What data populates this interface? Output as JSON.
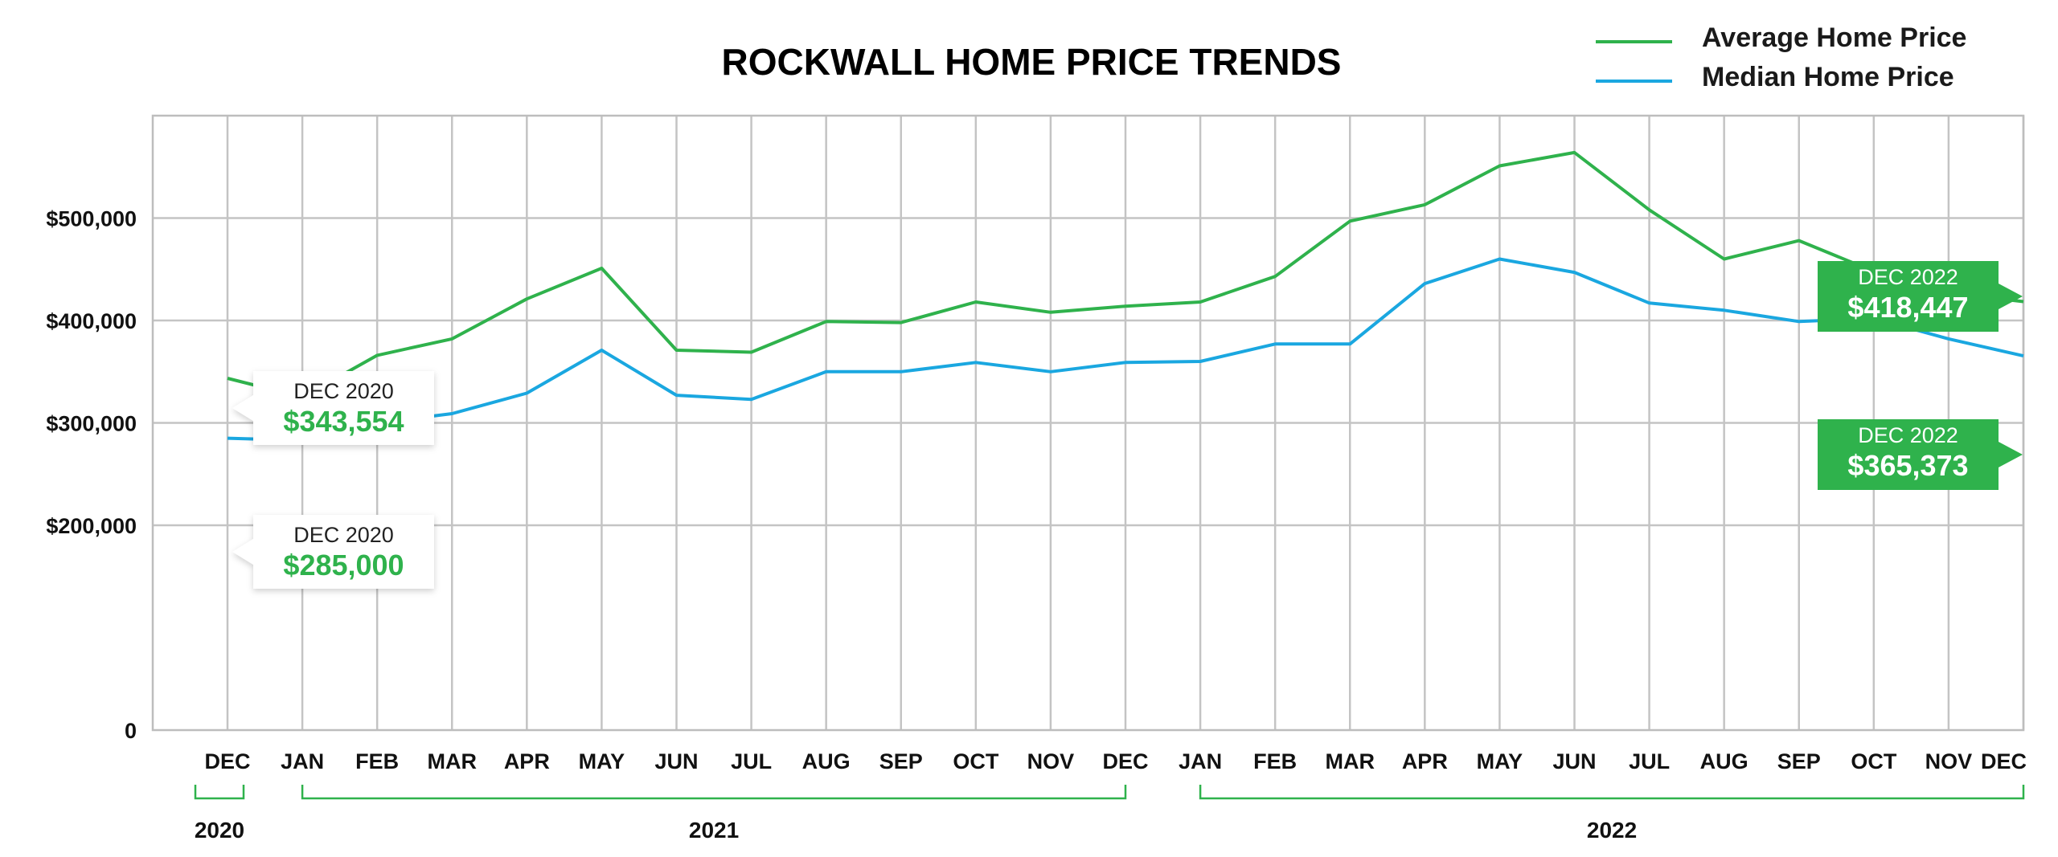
{
  "chart_data": {
    "type": "line",
    "title": "ROCKWALL HOME PRICE TRENDS",
    "xlabel": "",
    "ylabel": "",
    "ylim": [
      0,
      600000
    ],
    "y_ticks": [
      0,
      200000,
      300000,
      400000,
      500000
    ],
    "y_tick_labels": [
      "0",
      "$200,000",
      "$300,000",
      "$400,000",
      "$500,000"
    ],
    "grid": true,
    "legend_position": "top-right",
    "categories": [
      "DEC",
      "JAN",
      "FEB",
      "MAR",
      "APR",
      "MAY",
      "JUN",
      "JUL",
      "AUG",
      "SEP",
      "OCT",
      "NOV",
      "DEC",
      "JAN",
      "FEB",
      "MAR",
      "APR",
      "MAY",
      "JUN",
      "JUL",
      "AUG",
      "SEP",
      "OCT",
      "NOV",
      "DEC"
    ],
    "year_groups": [
      {
        "label": "2020",
        "from": 0,
        "to": 0
      },
      {
        "label": "2021",
        "from": 1,
        "to": 12
      },
      {
        "label": "2022",
        "from": 13,
        "to": 24
      }
    ],
    "series": [
      {
        "name": "Average Home Price",
        "color": "#2fb24c",
        "values": [
          343554,
          325000,
          366000,
          382000,
          421000,
          451000,
          371000,
          369000,
          399000,
          398000,
          418000,
          408000,
          414000,
          418000,
          443000,
          497000,
          513000,
          551000,
          564000,
          508000,
          460000,
          478000,
          448000,
          427000,
          418447
        ]
      },
      {
        "name": "Median Home Price",
        "color": "#1aa7e0",
        "values": [
          285000,
          283000,
          300000,
          309000,
          329000,
          371000,
          327000,
          323000,
          350000,
          350000,
          359000,
          350000,
          359000,
          360000,
          377000,
          377000,
          436000,
          460000,
          447000,
          417000,
          410000,
          399000,
          402000,
          382000,
          365373
        ]
      }
    ],
    "callouts": [
      {
        "id": "avg-start",
        "date": "DEC 2020",
        "value": "$343,554",
        "series": 0,
        "index": 0,
        "style": "white"
      },
      {
        "id": "med-start",
        "date": "DEC 2020",
        "value": "$285,000",
        "series": 1,
        "index": 0,
        "style": "white"
      },
      {
        "id": "avg-end",
        "date": "DEC 2022",
        "value": "$418,447",
        "series": 0,
        "index": 24,
        "style": "green"
      },
      {
        "id": "med-end",
        "date": "DEC 2022",
        "value": "$365,373",
        "series": 1,
        "index": 24,
        "style": "green"
      }
    ]
  }
}
